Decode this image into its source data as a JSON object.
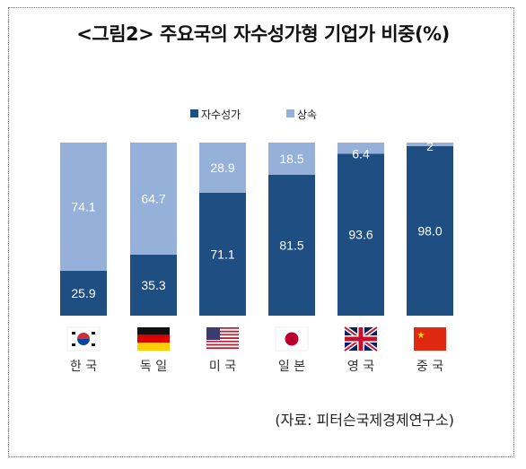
{
  "title": "<그림2> 주요국의 자수성가형 기업가 비중(%)",
  "source": "(자료: 피터슨국제경제연구소)",
  "colors": {
    "self_made": "#1f4e82",
    "inherited": "#96b1d9",
    "bar_text": "#ffffff"
  },
  "chart_data": {
    "type": "bar",
    "stacked": true,
    "categories": [
      "한 국",
      "독 일",
      "미 국",
      "일 본",
      "영 국",
      "중 국"
    ],
    "flags": [
      "korea-flag",
      "germany-flag",
      "usa-flag",
      "japan-flag",
      "uk-flag",
      "china-flag"
    ],
    "series": [
      {
        "name": "자수성가",
        "values": [
          25.9,
          35.3,
          71.1,
          81.5,
          93.6,
          98.0
        ],
        "labels": [
          "25.9",
          "35.3",
          "71.1",
          "81.5",
          "93.6",
          "98.0"
        ]
      },
      {
        "name": "상속",
        "values": [
          74.1,
          64.7,
          28.9,
          18.5,
          6.4,
          2.0
        ],
        "labels": [
          "74.1",
          "64.7",
          "28.9",
          "18.5",
          "6.4",
          "2"
        ]
      }
    ],
    "ylim": [
      0,
      100
    ],
    "legend_position": "top",
    "grid": false
  }
}
